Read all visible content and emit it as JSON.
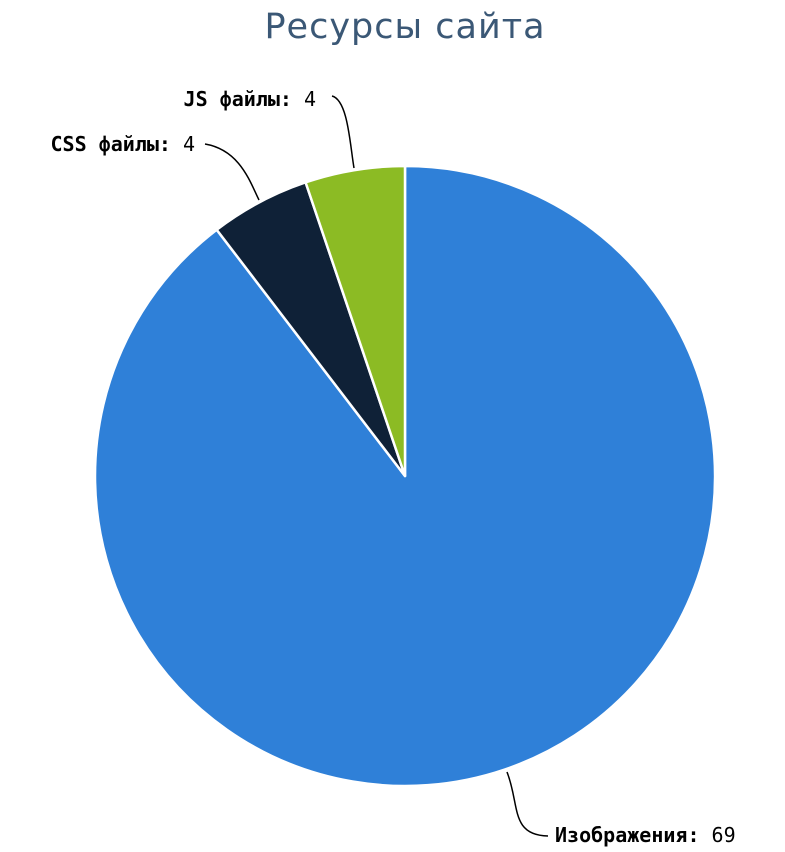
{
  "chart_data": {
    "type": "pie",
    "title": "Ресурсы сайта",
    "slices": [
      {
        "label": "Изображения",
        "value": 69,
        "color": "#2f80d8"
      },
      {
        "label": "CSS файлы",
        "value": 4,
        "color": "#0f2137"
      },
      {
        "label": "JS файлы",
        "value": 4,
        "color": "#8cbb24"
      }
    ],
    "start": "12 o'clock",
    "direction": "clockwise",
    "data_labels": "name: value, bold name, outside with connector lines",
    "legend": "none"
  }
}
